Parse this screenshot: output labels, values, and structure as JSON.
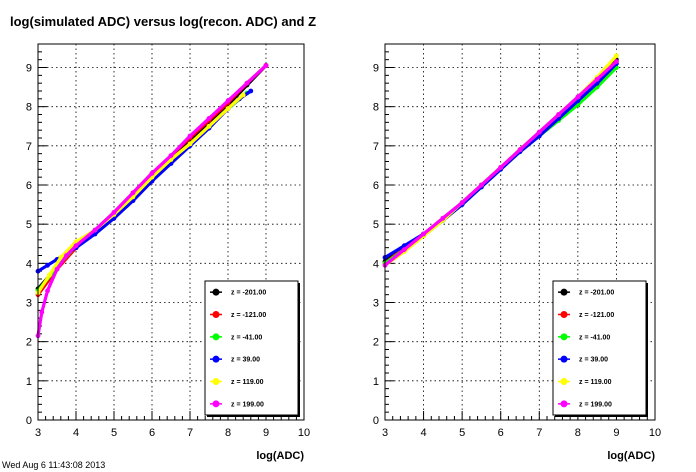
{
  "title": "log(simulated ADC) versus log(recon. ADC) and Z",
  "footer_left": "Wed Aug  6 11:43:08 2013",
  "footer_right": "",
  "chart_data": [
    {
      "type": "scatter",
      "xlabel": "log(ADC)",
      "ylabel": "",
      "xlim": [
        3,
        10
      ],
      "ylim": [
        0,
        9.6
      ],
      "x_ticks": [
        3,
        4,
        5,
        6,
        7,
        8,
        9,
        10
      ],
      "y_ticks": [
        0,
        1,
        2,
        3,
        4,
        5,
        6,
        7,
        8,
        9
      ],
      "grid": true,
      "legend_position": "bottom-right",
      "series": [
        {
          "name": "z = -201.00",
          "color": "#000000",
          "x": [
            3.0,
            3.5,
            4.0,
            4.5,
            5.0,
            5.5,
            6.0,
            6.5,
            7.0,
            7.5,
            8.0,
            8.5,
            9.0
          ],
          "y": [
            3.35,
            3.9,
            4.4,
            4.8,
            5.25,
            5.75,
            6.25,
            6.7,
            7.15,
            7.6,
            8.05,
            8.55,
            9.05
          ]
        },
        {
          "name": "z = -121.00",
          "color": "#ff0000",
          "x": [
            3.0,
            3.5,
            4.0,
            4.5,
            5.0,
            5.5,
            6.0,
            6.5,
            7.0,
            7.5,
            8.0,
            8.5,
            9.0
          ],
          "y": [
            3.2,
            3.85,
            4.4,
            4.85,
            5.3,
            5.8,
            6.3,
            6.75,
            7.2,
            7.65,
            8.1,
            8.6,
            9.05
          ]
        },
        {
          "name": "z = -41.00",
          "color": "#00ff00",
          "x": [
            3.0,
            3.5,
            4.0,
            4.5,
            5.0,
            5.5,
            6.0,
            6.5,
            7.0,
            7.5,
            8.0,
            8.5
          ],
          "y": [
            3.3,
            3.9,
            4.45,
            4.85,
            5.25,
            5.7,
            6.2,
            6.65,
            7.05,
            7.5,
            7.95,
            8.35
          ]
        },
        {
          "name": "z = 39.00",
          "color": "#0000ff",
          "x": [
            3.0,
            3.25,
            3.5,
            3.75,
            4.0,
            4.5,
            5.0,
            5.5,
            6.0,
            6.5,
            7.0,
            7.5,
            8.0,
            8.3,
            8.6
          ],
          "y": [
            3.8,
            3.95,
            4.1,
            4.25,
            4.4,
            4.75,
            5.15,
            5.6,
            6.1,
            6.55,
            7.0,
            7.45,
            7.95,
            8.2,
            8.4
          ]
        },
        {
          "name": "z = 119.00",
          "color": "#ffff00",
          "x": [
            3.0,
            3.3,
            3.6,
            4.0,
            4.5,
            5.0,
            5.5,
            6.0,
            6.5,
            7.0,
            7.5,
            8.0,
            8.4
          ],
          "y": [
            3.25,
            3.7,
            4.15,
            4.55,
            4.85,
            5.25,
            5.7,
            6.2,
            6.65,
            7.05,
            7.5,
            7.95,
            8.3
          ]
        },
        {
          "name": "z = 199.00",
          "color": "#ff00ff",
          "x": [
            3.0,
            3.1,
            3.25,
            3.5,
            3.75,
            4.0,
            4.5,
            5.0,
            5.5,
            6.0,
            6.5,
            7.0,
            7.5,
            8.0,
            8.5,
            9.0
          ],
          "y": [
            2.15,
            2.75,
            3.3,
            3.85,
            4.2,
            4.45,
            4.85,
            5.3,
            5.8,
            6.3,
            6.75,
            7.25,
            7.7,
            8.15,
            8.6,
            9.05
          ]
        }
      ]
    },
    {
      "type": "scatter",
      "xlabel": "log(ADC)",
      "ylabel": "",
      "xlim": [
        3,
        10
      ],
      "ylim": [
        0,
        9.6
      ],
      "x_ticks": [
        3,
        4,
        5,
        6,
        7,
        8,
        9,
        10
      ],
      "y_ticks": [
        0,
        1,
        2,
        3,
        4,
        5,
        6,
        7,
        8,
        9
      ],
      "grid": true,
      "legend_position": "bottom-right",
      "series": [
        {
          "name": "z = -201.00",
          "color": "#000000",
          "x": [
            3.0,
            3.5,
            4.0,
            4.5,
            5.0,
            5.5,
            6.0,
            6.5,
            7.0,
            7.5,
            8.0,
            8.5,
            9.0
          ],
          "y": [
            4.05,
            4.4,
            4.75,
            5.1,
            5.55,
            6.0,
            6.45,
            6.9,
            7.3,
            7.75,
            8.2,
            8.7,
            9.2
          ]
        },
        {
          "name": "z = -121.00",
          "color": "#ff0000",
          "x": [
            3.0,
            3.5,
            4.0,
            4.5,
            5.0,
            5.5,
            6.0,
            6.5,
            7.0,
            7.5,
            8.0,
            8.5,
            9.0
          ],
          "y": [
            4.0,
            4.4,
            4.75,
            5.15,
            5.55,
            6.0,
            6.45,
            6.9,
            7.35,
            7.8,
            8.25,
            8.7,
            9.15
          ]
        },
        {
          "name": "z = -41.00",
          "color": "#00ff00",
          "x": [
            3.0,
            3.5,
            4.0,
            4.5,
            5.0,
            5.5,
            6.0,
            6.5,
            7.0,
            7.5,
            8.0,
            8.5,
            9.0
          ],
          "y": [
            4.0,
            4.35,
            4.7,
            5.1,
            5.5,
            5.95,
            6.4,
            6.85,
            7.25,
            7.65,
            8.05,
            8.5,
            9.0
          ]
        },
        {
          "name": "z = 39.00",
          "color": "#0000ff",
          "x": [
            3.0,
            3.5,
            4.0,
            4.5,
            5.0,
            5.5,
            6.0,
            6.5,
            7.0,
            7.5,
            8.0,
            8.5,
            9.0
          ],
          "y": [
            4.15,
            4.45,
            4.75,
            5.1,
            5.5,
            5.95,
            6.4,
            6.85,
            7.25,
            7.7,
            8.15,
            8.6,
            9.1
          ]
        },
        {
          "name": "z = 119.00",
          "color": "#ffff00",
          "x": [
            3.0,
            3.5,
            4.0,
            4.5,
            5.0,
            5.5,
            6.0,
            6.5,
            7.0,
            7.5,
            8.0,
            8.5,
            9.0
          ],
          "y": [
            3.95,
            4.3,
            4.7,
            5.1,
            5.55,
            6.0,
            6.45,
            6.9,
            7.35,
            7.8,
            8.25,
            8.75,
            9.3
          ]
        },
        {
          "name": "z = 199.00",
          "color": "#ff00ff",
          "x": [
            3.0,
            3.5,
            4.0,
            4.5,
            5.0,
            5.5,
            6.0,
            6.5,
            7.0,
            7.5,
            8.0,
            8.5,
            9.0
          ],
          "y": [
            3.95,
            4.35,
            4.75,
            5.15,
            5.55,
            6.0,
            6.45,
            6.9,
            7.35,
            7.8,
            8.25,
            8.7,
            9.15
          ]
        }
      ]
    }
  ]
}
